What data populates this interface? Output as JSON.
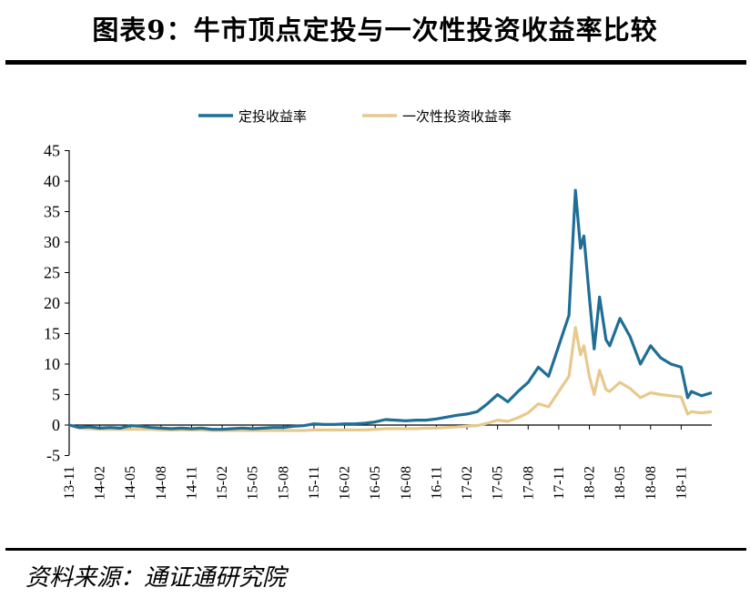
{
  "header": {
    "title": "图表9：牛市顶点定投与一次性投资收益率比较"
  },
  "footer": {
    "source": "资料来源：通证通研究院"
  },
  "colors": {
    "series_dca": "#1f6e96",
    "series_lump": "#e8c98d",
    "axis": "#000000"
  },
  "chart_data": {
    "type": "line",
    "title": "",
    "xlabel": "",
    "ylabel": "",
    "ylim": [
      -5,
      45
    ],
    "yticks": [
      -5,
      0,
      5,
      10,
      15,
      20,
      25,
      30,
      35,
      40,
      45
    ],
    "xticks": [
      "13-11",
      "14-02",
      "14-05",
      "14-08",
      "14-11",
      "15-02",
      "15-05",
      "15-08",
      "15-11",
      "16-02",
      "16-05",
      "16-08",
      "16-11",
      "17-02",
      "17-05",
      "17-08",
      "17-11",
      "18-02",
      "18-05",
      "18-08",
      "18-11"
    ],
    "xlim_months": [
      "2013-11",
      "2019-02"
    ],
    "legend_position": "top",
    "grid": false,
    "series": [
      {
        "name": "定投收益率",
        "color": "#1f6e96",
        "points": [
          [
            "2013-11",
            0
          ],
          [
            "2013-12",
            -0.4
          ],
          [
            "2014-01",
            -0.3
          ],
          [
            "2014-02",
            -0.5
          ],
          [
            "2014-03",
            -0.4
          ],
          [
            "2014-04",
            -0.5
          ],
          [
            "2014-05",
            -0.1
          ],
          [
            "2014-06",
            -0.2
          ],
          [
            "2014-07",
            -0.4
          ],
          [
            "2014-08",
            -0.5
          ],
          [
            "2014-09",
            -0.6
          ],
          [
            "2014-10",
            -0.5
          ],
          [
            "2014-11",
            -0.6
          ],
          [
            "2014-12",
            -0.5
          ],
          [
            "2015-01",
            -0.7
          ],
          [
            "2015-02",
            -0.7
          ],
          [
            "2015-03",
            -0.6
          ],
          [
            "2015-04",
            -0.5
          ],
          [
            "2015-05",
            -0.6
          ],
          [
            "2015-06",
            -0.5
          ],
          [
            "2015-07",
            -0.4
          ],
          [
            "2015-08",
            -0.4
          ],
          [
            "2015-09",
            -0.2
          ],
          [
            "2015-10",
            -0.1
          ],
          [
            "2015-11",
            0.2
          ],
          [
            "2015-12",
            0.1
          ],
          [
            "2016-01",
            0.1
          ],
          [
            "2016-02",
            0.2
          ],
          [
            "2016-03",
            0.2
          ],
          [
            "2016-04",
            0.3
          ],
          [
            "2016-05",
            0.5
          ],
          [
            "2016-06",
            0.9
          ],
          [
            "2016-07",
            0.8
          ],
          [
            "2016-08",
            0.7
          ],
          [
            "2016-09",
            0.8
          ],
          [
            "2016-10",
            0.8
          ],
          [
            "2016-11",
            1.0
          ],
          [
            "2016-12",
            1.3
          ],
          [
            "2017-01",
            1.6
          ],
          [
            "2017-02",
            1.8
          ],
          [
            "2017-03",
            2.2
          ],
          [
            "2017-04",
            3.5
          ],
          [
            "2017-05",
            5.0
          ],
          [
            "2017-06",
            3.8
          ],
          [
            "2017-07",
            5.5
          ],
          [
            "2017-08",
            7.0
          ],
          [
            "2017-09",
            9.5
          ],
          [
            "2017-10",
            8.0
          ],
          [
            "2017-11",
            13.0
          ],
          [
            "2017-12",
            18.0
          ],
          [
            "2017-12-20",
            38.5
          ],
          [
            "2018-01-05",
            29.0
          ],
          [
            "2018-01-15",
            31.0
          ],
          [
            "2018-02-01",
            21.0
          ],
          [
            "2018-02-15",
            12.5
          ],
          [
            "2018-03",
            21.0
          ],
          [
            "2018-03-20",
            14.0
          ],
          [
            "2018-04",
            13.0
          ],
          [
            "2018-05",
            17.5
          ],
          [
            "2018-06",
            14.5
          ],
          [
            "2018-07",
            10.0
          ],
          [
            "2018-08",
            13.0
          ],
          [
            "2018-09",
            11.0
          ],
          [
            "2018-10",
            10.0
          ],
          [
            "2018-11",
            9.5
          ],
          [
            "2018-11-20",
            4.5
          ],
          [
            "2018-12",
            5.5
          ],
          [
            "2019-01",
            4.8
          ],
          [
            "2019-02",
            5.3
          ]
        ]
      },
      {
        "name": "一次性投资收益率",
        "color": "#e8c98d",
        "points": [
          [
            "2013-11",
            0
          ],
          [
            "2013-12",
            -0.5
          ],
          [
            "2014-01",
            -0.6
          ],
          [
            "2014-02",
            -0.7
          ],
          [
            "2014-03",
            -0.7
          ],
          [
            "2014-04",
            -0.7
          ],
          [
            "2014-05",
            -0.7
          ],
          [
            "2014-06",
            -0.7
          ],
          [
            "2014-07",
            -0.7
          ],
          [
            "2014-08",
            -0.8
          ],
          [
            "2014-09",
            -0.8
          ],
          [
            "2014-10",
            -0.8
          ],
          [
            "2014-11",
            -0.8
          ],
          [
            "2014-12",
            -0.8
          ],
          [
            "2015-01",
            -0.9
          ],
          [
            "2015-02",
            -0.9
          ],
          [
            "2015-03",
            -0.9
          ],
          [
            "2015-04",
            -0.9
          ],
          [
            "2015-05",
            -0.9
          ],
          [
            "2015-06",
            -0.9
          ],
          [
            "2015-07",
            -0.9
          ],
          [
            "2015-08",
            -0.9
          ],
          [
            "2015-09",
            -0.9
          ],
          [
            "2015-10",
            -0.9
          ],
          [
            "2015-11",
            -0.8
          ],
          [
            "2015-12",
            -0.8
          ],
          [
            "2016-01",
            -0.8
          ],
          [
            "2016-02",
            -0.8
          ],
          [
            "2016-03",
            -0.8
          ],
          [
            "2016-04",
            -0.8
          ],
          [
            "2016-05",
            -0.7
          ],
          [
            "2016-06",
            -0.6
          ],
          [
            "2016-07",
            -0.6
          ],
          [
            "2016-08",
            -0.6
          ],
          [
            "2016-09",
            -0.6
          ],
          [
            "2016-10",
            -0.5
          ],
          [
            "2016-11",
            -0.5
          ],
          [
            "2016-12",
            -0.4
          ],
          [
            "2017-01",
            -0.3
          ],
          [
            "2017-02",
            -0.2
          ],
          [
            "2017-03",
            -0.1
          ],
          [
            "2017-04",
            0.3
          ],
          [
            "2017-05",
            0.8
          ],
          [
            "2017-06",
            0.6
          ],
          [
            "2017-07",
            1.2
          ],
          [
            "2017-08",
            2.0
          ],
          [
            "2017-09",
            3.5
          ],
          [
            "2017-10",
            3.0
          ],
          [
            "2017-11",
            5.5
          ],
          [
            "2017-12",
            8.0
          ],
          [
            "2017-12-20",
            16.0
          ],
          [
            "2018-01-05",
            11.5
          ],
          [
            "2018-01-15",
            13.0
          ],
          [
            "2018-02-01",
            8.0
          ],
          [
            "2018-02-15",
            5.0
          ],
          [
            "2018-03",
            9.0
          ],
          [
            "2018-03-20",
            5.8
          ],
          [
            "2018-04",
            5.5
          ],
          [
            "2018-05",
            7.0
          ],
          [
            "2018-06",
            6.0
          ],
          [
            "2018-07",
            4.5
          ],
          [
            "2018-08",
            5.3
          ],
          [
            "2018-09",
            5.0
          ],
          [
            "2018-10",
            4.8
          ],
          [
            "2018-11",
            4.6
          ],
          [
            "2018-11-20",
            1.8
          ],
          [
            "2018-12",
            2.2
          ],
          [
            "2019-01",
            2.0
          ],
          [
            "2019-02",
            2.2
          ]
        ]
      }
    ]
  }
}
